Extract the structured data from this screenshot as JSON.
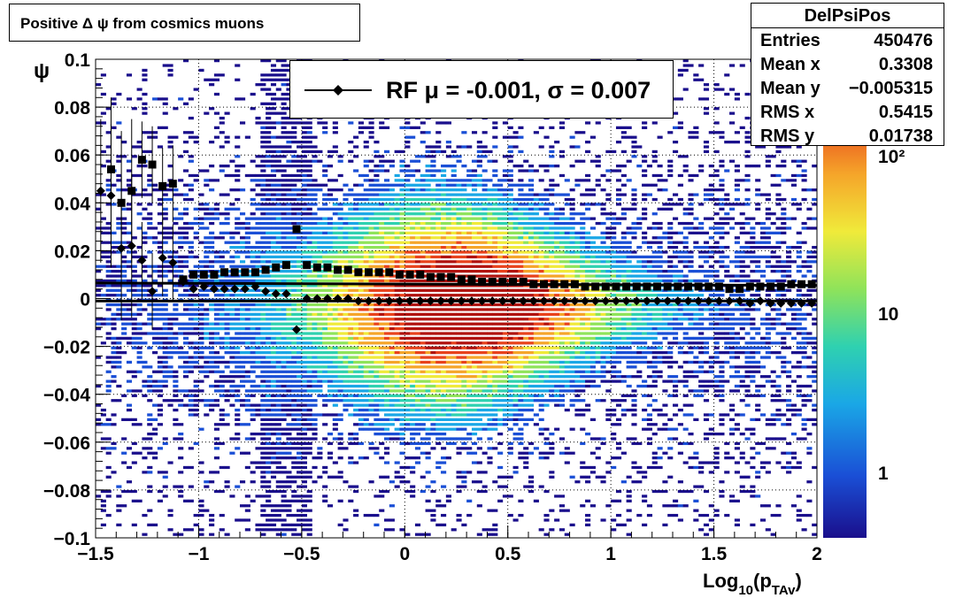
{
  "title": "Positive Δ ψ from cosmics muons",
  "stats": {
    "name": "DelPsiPos",
    "rows": [
      {
        "label": "Entries",
        "value": "450476"
      },
      {
        "label": "Mean x",
        "value": "0.3308"
      },
      {
        "label": "Mean y",
        "value": "−0.005315"
      },
      {
        "label": "RMS x",
        "value": "0.5415"
      },
      {
        "label": "RMS y",
        "value": "0.01738"
      }
    ]
  },
  "legend": {
    "entry": "RF μ = -0.001, σ =   0.007"
  },
  "axes": {
    "xlabel_main": "Log",
    "xlabel_sub1": "10",
    "xlabel_mid": "(p",
    "xlabel_sub2": "TAv",
    "xlabel_end": ")",
    "ylabel": "ψ"
  },
  "chart_data": {
    "type": "heatmap",
    "title": "Positive Δ ψ from cosmics muons",
    "xlim": [
      -1.5,
      2
    ],
    "ylim": [
      -0.1,
      0.1
    ],
    "x_ticks": [
      "−1.5",
      "−1",
      "−0.5",
      "0",
      "0.5",
      "1",
      "1.5",
      "2"
    ],
    "y_ticks": [
      "−0.1",
      "−0.08",
      "−0.06",
      "−0.04",
      "−0.02",
      "0",
      "0.02",
      "0.04",
      "0.06",
      "0.08",
      "0.1"
    ],
    "z_scale": "log",
    "z_ticks": [
      "1",
      "10",
      "10²"
    ],
    "grid": true,
    "colors": [
      "#1a0f8c",
      "#1a4fd6",
      "#1aa7e6",
      "#2fd1b0",
      "#8fe35a",
      "#f0ea3a",
      "#f5a52a",
      "#e8421c",
      "#b0120f"
    ],
    "series": [
      {
        "name": "mean",
        "marker": "diamond",
        "x": [
          -1.475,
          -1.425,
          -1.375,
          -1.325,
          -1.275,
          -1.225,
          -1.175,
          -1.125,
          -1.075,
          -1.025,
          -0.975,
          -0.925,
          -0.875,
          -0.825,
          -0.775,
          -0.725,
          -0.675,
          -0.625,
          -0.575,
          -0.525,
          -0.475,
          -0.425,
          -0.375,
          -0.325,
          -0.275,
          -0.225,
          -0.175,
          -0.125,
          -0.075,
          -0.025,
          0.025,
          0.075,
          0.125,
          0.175,
          0.225,
          0.275,
          0.325,
          0.375,
          0.425,
          0.475,
          0.525,
          0.575,
          0.625,
          0.675,
          0.725,
          0.775,
          0.825,
          0.875,
          0.925,
          0.975,
          1.025,
          1.075,
          1.125,
          1.175,
          1.225,
          1.275,
          1.325,
          1.375,
          1.425,
          1.475,
          1.525,
          1.575,
          1.625,
          1.675,
          1.725,
          1.775,
          1.825,
          1.875,
          1.925,
          1.975
        ],
        "y": [
          0.045,
          0.043,
          0.021,
          0.022,
          0.016,
          0.003,
          0.017,
          0.015,
          0.007,
          0.004,
          0.005,
          0.004,
          0.004,
          0.004,
          0.004,
          0.005,
          0.003,
          0.002,
          0.002,
          -0.013,
          0.0,
          0.0,
          0.0,
          0.0,
          0.0,
          -0.001,
          -0.001,
          -0.001,
          -0.001,
          -0.001,
          -0.001,
          -0.001,
          -0.001,
          -0.001,
          -0.001,
          -0.001,
          -0.001,
          -0.001,
          -0.001,
          -0.001,
          -0.001,
          -0.001,
          -0.001,
          -0.001,
          -0.001,
          -0.001,
          -0.001,
          -0.001,
          -0.001,
          -0.001,
          -0.001,
          -0.001,
          -0.001,
          -0.001,
          -0.001,
          -0.001,
          -0.001,
          -0.001,
          -0.001,
          -0.001,
          -0.001,
          -0.001,
          -0.001,
          -0.002,
          -0.001,
          -0.002,
          -0.002,
          -0.002,
          -0.002,
          -0.002
        ]
      },
      {
        "name": "sigma",
        "marker": "square",
        "x": [
          -1.425,
          -1.375,
          -1.325,
          -1.275,
          -1.225,
          -1.175,
          -1.125,
          -1.075,
          -1.025,
          -0.975,
          -0.925,
          -0.875,
          -0.825,
          -0.775,
          -0.725,
          -0.675,
          -0.625,
          -0.575,
          -0.525,
          -0.475,
          -0.425,
          -0.375,
          -0.325,
          -0.275,
          -0.225,
          -0.175,
          -0.125,
          -0.075,
          -0.025,
          0.025,
          0.075,
          0.125,
          0.175,
          0.225,
          0.275,
          0.325,
          0.375,
          0.425,
          0.475,
          0.525,
          0.575,
          0.625,
          0.675,
          0.725,
          0.775,
          0.825,
          0.875,
          0.925,
          0.975,
          1.025,
          1.075,
          1.125,
          1.175,
          1.225,
          1.275,
          1.325,
          1.375,
          1.425,
          1.475,
          1.525,
          1.575,
          1.625,
          1.675,
          1.725,
          1.775,
          1.825,
          1.875,
          1.925,
          1.975
        ],
        "y": [
          0.054,
          0.04,
          0.045,
          0.058,
          0.056,
          0.047,
          0.048,
          0.008,
          0.01,
          0.01,
          0.01,
          0.011,
          0.011,
          0.011,
          0.011,
          0.012,
          0.013,
          0.014,
          0.029,
          0.014,
          0.013,
          0.013,
          0.012,
          0.012,
          0.011,
          0.011,
          0.011,
          0.011,
          0.01,
          0.01,
          0.01,
          0.009,
          0.009,
          0.009,
          0.008,
          0.008,
          0.007,
          0.007,
          0.007,
          0.007,
          0.007,
          0.006,
          0.006,
          0.006,
          0.006,
          0.006,
          0.005,
          0.005,
          0.005,
          0.005,
          0.005,
          0.005,
          0.005,
          0.005,
          0.005,
          0.005,
          0.005,
          0.005,
          0.005,
          0.005,
          0.004,
          0.004,
          0.005,
          0.005,
          0.005,
          0.005,
          0.006,
          0.006,
          0.006
        ]
      }
    ],
    "fit_lines": [
      {
        "x": [
          -1.5,
          2
        ],
        "y": [
          -0.001,
          -0.001
        ]
      },
      {
        "x": [
          -1.5,
          2
        ],
        "y": [
          0.0065,
          0.0055
        ]
      }
    ]
  }
}
